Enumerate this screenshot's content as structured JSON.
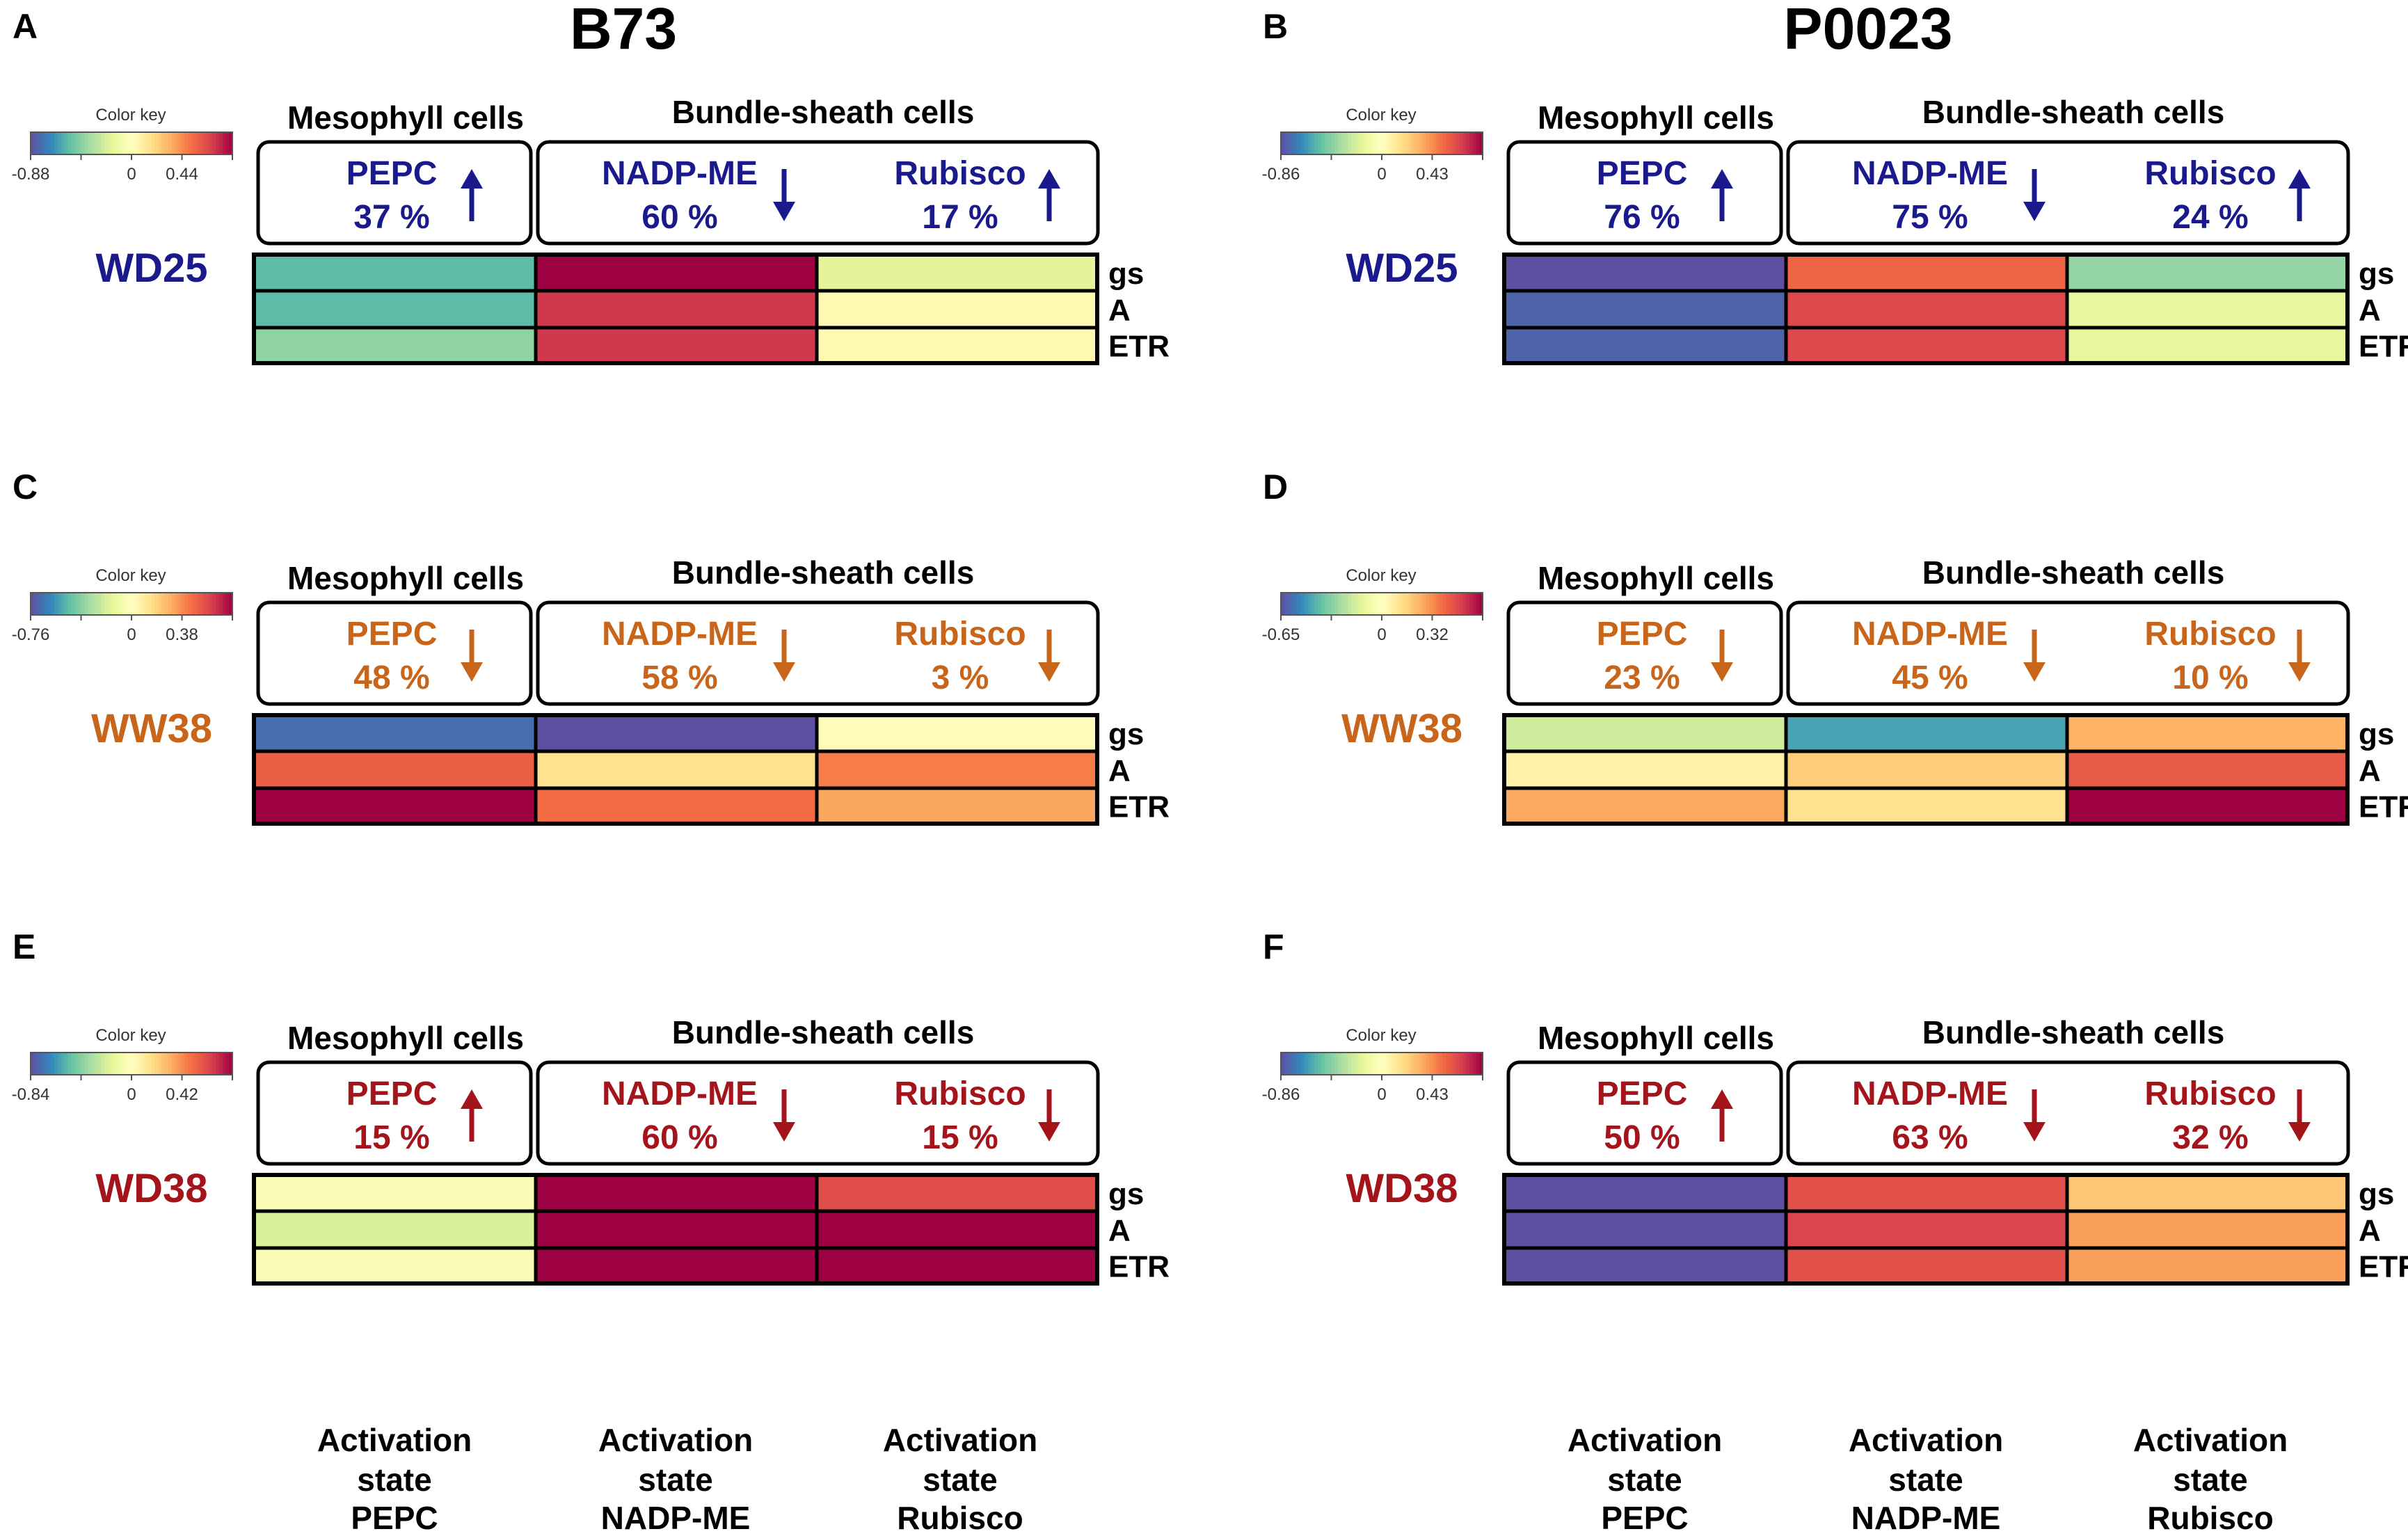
{
  "figure": {
    "column_titles": [
      "B73",
      "P0023"
    ],
    "column_label": "Activation state",
    "rows_label": [
      "gs",
      "A",
      "ETR"
    ],
    "mesophyll_label": "Mesophyll cells",
    "bundle_label": "Bundle-sheath cells",
    "color_key_label": "Color key",
    "palette": [
      "#5e4fa2",
      "#3288bd",
      "#66c2a5",
      "#abdda4",
      "#e6f598",
      "#ffffbf",
      "#fee08b",
      "#fdae61",
      "#f46d43",
      "#d53e4f",
      "#9e0142"
    ],
    "condition_colors": {
      "WD25": "#1a1a8c",
      "WW38": "#c8651b",
      "WD38": "#a3141b"
    }
  },
  "chart_data": [
    {
      "type": "heatmap",
      "panel": "A",
      "genotype": "B73",
      "condition": "WD25",
      "color_key": {
        "min_label": "-0.88",
        "zero_label": "0",
        "max_label": "0.44",
        "range": [
          -0.88,
          0.88
        ]
      },
      "enzymes": [
        {
          "name": "PEPC",
          "percent": "37 %",
          "direction": "up"
        },
        {
          "name": "NADP-ME",
          "percent": "60 %",
          "direction": "down"
        },
        {
          "name": "Rubisco",
          "percent": "17 %",
          "direction": "up"
        }
      ],
      "rows": [
        "gs",
        "A",
        "ETR"
      ],
      "columns": [
        "PEPC",
        "NADP-ME",
        "Rubisco"
      ],
      "values": [
        [
          -0.55,
          0.88,
          -0.18
        ],
        [
          -0.55,
          0.72,
          0.04
        ],
        [
          -0.42,
          0.72,
          0.04
        ]
      ]
    },
    {
      "type": "heatmap",
      "panel": "B",
      "genotype": "P0023",
      "condition": "WD25",
      "color_key": {
        "min_label": "-0.86",
        "zero_label": "0",
        "max_label": "0.43",
        "range": [
          -0.86,
          0.86
        ]
      },
      "enzymes": [
        {
          "name": "PEPC",
          "percent": "76 %",
          "direction": "up"
        },
        {
          "name": "NADP-ME",
          "percent": "75 %",
          "direction": "down"
        },
        {
          "name": "Rubisco",
          "percent": "24 %",
          "direction": "up"
        }
      ],
      "rows": [
        "gs",
        "A",
        "ETR"
      ],
      "columns": [
        "PEPC",
        "NADP-ME",
        "Rubisco"
      ],
      "values": [
        [
          -0.86,
          0.55,
          -0.4
        ],
        [
          -0.8,
          0.65,
          -0.15
        ],
        [
          -0.8,
          0.65,
          -0.15
        ]
      ]
    },
    {
      "type": "heatmap",
      "panel": "C",
      "genotype": "B73",
      "condition": "WW38",
      "color_key": {
        "min_label": "-0.76",
        "zero_label": "0",
        "max_label": "0.38",
        "range": [
          -0.76,
          0.76
        ]
      },
      "enzymes": [
        {
          "name": "PEPC",
          "percent": "48 %",
          "direction": "down"
        },
        {
          "name": "NADP-ME",
          "percent": "58 %",
          "direction": "down"
        },
        {
          "name": "Rubisco",
          "percent": "3 %",
          "direction": "down"
        }
      ],
      "rows": [
        "gs",
        "A",
        "ETR"
      ],
      "columns": [
        "PEPC",
        "NADP-ME",
        "Rubisco"
      ],
      "values": [
        [
          -0.68,
          -0.76,
          0.02
        ],
        [
          0.5,
          0.14,
          0.42
        ],
        [
          0.76,
          0.46,
          0.32
        ]
      ]
    },
    {
      "type": "heatmap",
      "panel": "D",
      "genotype": "P0023",
      "condition": "WW38",
      "color_key": {
        "min_label": "-0.65",
        "zero_label": "0",
        "max_label": "0.32",
        "range": [
          -0.65,
          0.65
        ]
      },
      "enzymes": [
        {
          "name": "PEPC",
          "percent": "23 %",
          "direction": "down"
        },
        {
          "name": "NADP-ME",
          "percent": "45 %",
          "direction": "down"
        },
        {
          "name": "Rubisco",
          "percent": "10 %",
          "direction": "down"
        }
      ],
      "rows": [
        "gs",
        "A",
        "ETR"
      ],
      "columns": [
        "PEPC",
        "NADP-ME",
        "Rubisco"
      ],
      "values": [
        [
          -0.18,
          -0.46,
          0.25
        ],
        [
          0.06,
          0.18,
          0.44
        ],
        [
          0.27,
          0.12,
          0.65
        ]
      ]
    },
    {
      "type": "heatmap",
      "panel": "E",
      "genotype": "B73",
      "condition": "WD38",
      "color_key": {
        "min_label": "-0.84",
        "zero_label": "0",
        "max_label": "0.42",
        "range": [
          -0.84,
          0.84
        ]
      },
      "enzymes": [
        {
          "name": "PEPC",
          "percent": "15 %",
          "direction": "up"
        },
        {
          "name": "NADP-ME",
          "percent": "60 %",
          "direction": "down"
        },
        {
          "name": "Rubisco",
          "percent": "15 %",
          "direction": "down"
        }
      ],
      "rows": [
        "gs",
        "A",
        "ETR"
      ],
      "columns": [
        "PEPC",
        "NADP-ME",
        "Rubisco"
      ],
      "values": [
        [
          -0.04,
          0.84,
          0.62
        ],
        [
          -0.2,
          0.84,
          0.84
        ],
        [
          -0.04,
          0.84,
          0.84
        ]
      ]
    },
    {
      "type": "heatmap",
      "panel": "F",
      "genotype": "P0023",
      "condition": "WD38",
      "color_key": {
        "min_label": "-0.86",
        "zero_label": "0",
        "max_label": "0.43",
        "range": [
          -0.86,
          0.86
        ]
      },
      "enzymes": [
        {
          "name": "PEPC",
          "percent": "50 %",
          "direction": "up"
        },
        {
          "name": "NADP-ME",
          "percent": "63 %",
          "direction": "down"
        },
        {
          "name": "Rubisco",
          "percent": "32 %",
          "direction": "down"
        }
      ],
      "rows": [
        "gs",
        "A",
        "ETR"
      ],
      "columns": [
        "PEPC",
        "NADP-ME",
        "Rubisco"
      ],
      "values": [
        [
          -0.86,
          0.62,
          0.26
        ],
        [
          -0.86,
          0.66,
          0.38
        ],
        [
          -0.86,
          0.62,
          0.38
        ]
      ]
    }
  ]
}
